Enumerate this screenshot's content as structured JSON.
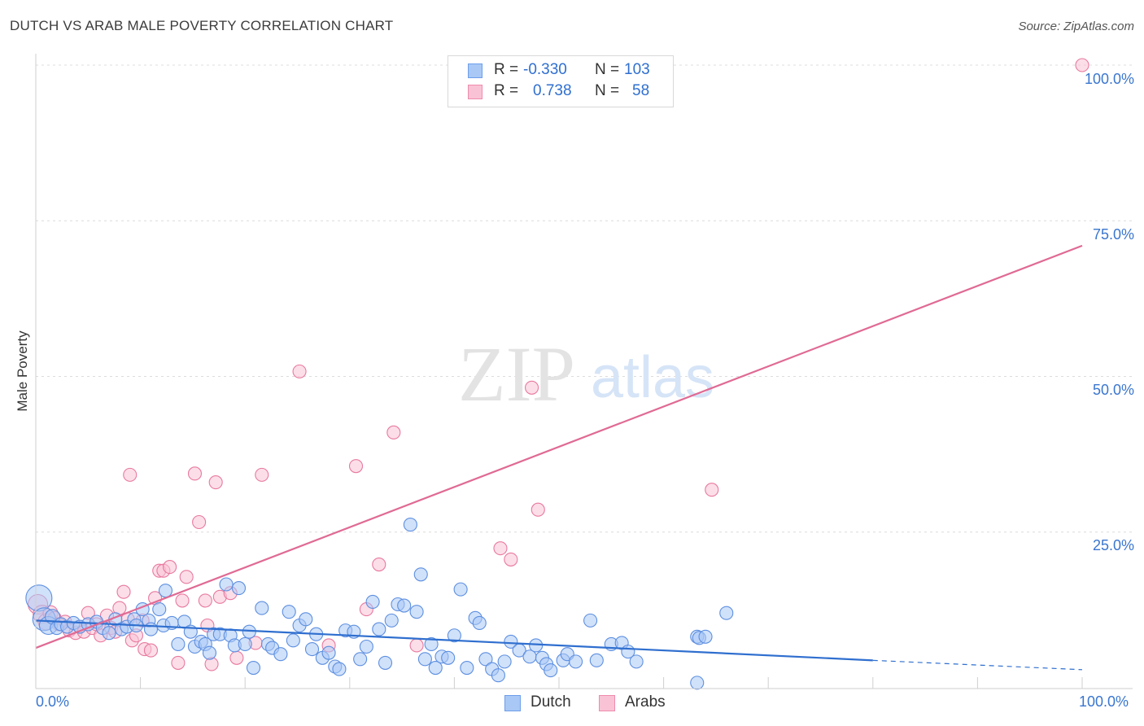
{
  "title": "DUTCH VS ARAB MALE POVERTY CORRELATION CHART",
  "source": "Source: ZipAtlas.com",
  "watermark": {
    "zip": "ZIP",
    "atlas": "atlas"
  },
  "legend": {
    "rows": [
      {
        "r_label": "R =",
        "r_value": "-0.330",
        "n_label": "N =",
        "n_value": "103",
        "color": "#a9c8f5",
        "border": "#6d9eea"
      },
      {
        "r_label": "R =",
        "r_value": "0.738",
        "n_label": "N =",
        "n_value": "58",
        "color": "#f9c3d5",
        "border": "#ee8bad"
      }
    ]
  },
  "colors": {
    "dutch_fill": "#a9c8f5",
    "dutch_stroke": "#5d8fe0",
    "dutch_line": "#2f6fcf",
    "arabs_fill": "#f9c3d5",
    "arabs_stroke": "#e8799f",
    "arabs_line": "#e06a94",
    "grid": "#dcdcdc",
    "axis_text": "#3a76cf"
  },
  "chart_data": {
    "type": "scatter",
    "title": "DUTCH VS ARAB MALE POVERTY CORRELATION CHART",
    "xlabel": "",
    "ylabel": "Male Poverty",
    "xlim": [
      0,
      100
    ],
    "ylim": [
      0,
      100
    ],
    "x_tick_labels": [
      "0.0%",
      "100.0%"
    ],
    "y_tick_labels": [
      "100.0%",
      "75.0%",
      "50.0%",
      "25.0%"
    ],
    "legend_position": "bottom-center",
    "series": [
      {
        "name": "Dutch",
        "r": -0.33,
        "n": 103,
        "trend": {
          "x0": 0,
          "y0": 10.8,
          "x1": 80,
          "y1": 4.4,
          "dash_to_x": 100,
          "dash_to_y": 2.9
        },
        "points": [
          {
            "x": 0.3,
            "y": 14.4,
            "s": 16
          },
          {
            "x": 0.8,
            "y": 11.0,
            "s": 14
          },
          {
            "x": 1.2,
            "y": 10.0,
            "s": 11
          },
          {
            "x": 1.6,
            "y": 11.4,
            "s": 9
          },
          {
            "x": 2.0,
            "y": 9.6,
            "s": 8
          },
          {
            "x": 2.4,
            "y": 10.2,
            "s": 8
          },
          {
            "x": 3.0,
            "y": 9.8,
            "s": 8
          },
          {
            "x": 3.6,
            "y": 10.4,
            "s": 8
          },
          {
            "x": 4.2,
            "y": 9.8,
            "s": 8
          },
          {
            "x": 5.0,
            "y": 10.2,
            "s": 8
          },
          {
            "x": 5.8,
            "y": 10.6,
            "s": 8
          },
          {
            "x": 6.4,
            "y": 9.6,
            "s": 8
          },
          {
            "x": 7.0,
            "y": 8.8,
            "s": 8
          },
          {
            "x": 7.6,
            "y": 11.0,
            "s": 8
          },
          {
            "x": 8.2,
            "y": 9.4,
            "s": 8
          },
          {
            "x": 8.7,
            "y": 9.8,
            "s": 8
          },
          {
            "x": 9.4,
            "y": 11.0,
            "s": 8
          },
          {
            "x": 9.6,
            "y": 10.0,
            "s": 8
          },
          {
            "x": 10.2,
            "y": 12.6,
            "s": 8
          },
          {
            "x": 10.8,
            "y": 10.8,
            "s": 8
          },
          {
            "x": 11.0,
            "y": 9.4,
            "s": 8
          },
          {
            "x": 11.8,
            "y": 12.6,
            "s": 8
          },
          {
            "x": 12.2,
            "y": 10.0,
            "s": 8
          },
          {
            "x": 12.4,
            "y": 15.6,
            "s": 8
          },
          {
            "x": 13.0,
            "y": 10.4,
            "s": 8
          },
          {
            "x": 13.6,
            "y": 7.0,
            "s": 8
          },
          {
            "x": 14.2,
            "y": 10.6,
            "s": 8
          },
          {
            "x": 14.8,
            "y": 9.0,
            "s": 8
          },
          {
            "x": 15.2,
            "y": 6.6,
            "s": 8
          },
          {
            "x": 15.8,
            "y": 7.4,
            "s": 8
          },
          {
            "x": 16.2,
            "y": 7.0,
            "s": 8
          },
          {
            "x": 16.6,
            "y": 5.6,
            "s": 8
          },
          {
            "x": 17.0,
            "y": 8.6,
            "s": 8
          },
          {
            "x": 17.6,
            "y": 8.6,
            "s": 8
          },
          {
            "x": 18.2,
            "y": 16.6,
            "s": 8
          },
          {
            "x": 18.6,
            "y": 8.4,
            "s": 8
          },
          {
            "x": 19.0,
            "y": 6.8,
            "s": 8
          },
          {
            "x": 19.4,
            "y": 16.0,
            "s": 8
          },
          {
            "x": 20.0,
            "y": 7.0,
            "s": 8
          },
          {
            "x": 20.4,
            "y": 9.0,
            "s": 8
          },
          {
            "x": 20.8,
            "y": 3.2,
            "s": 8
          },
          {
            "x": 21.6,
            "y": 12.8,
            "s": 8
          },
          {
            "x": 22.2,
            "y": 7.0,
            "s": 8
          },
          {
            "x": 22.6,
            "y": 6.4,
            "s": 8
          },
          {
            "x": 23.4,
            "y": 5.4,
            "s": 8
          },
          {
            "x": 24.2,
            "y": 12.2,
            "s": 8
          },
          {
            "x": 24.6,
            "y": 7.6,
            "s": 8
          },
          {
            "x": 25.2,
            "y": 10.0,
            "s": 8
          },
          {
            "x": 25.8,
            "y": 11.0,
            "s": 8
          },
          {
            "x": 26.4,
            "y": 6.2,
            "s": 8
          },
          {
            "x": 26.8,
            "y": 8.6,
            "s": 8
          },
          {
            "x": 27.4,
            "y": 4.8,
            "s": 8
          },
          {
            "x": 28.0,
            "y": 5.6,
            "s": 8
          },
          {
            "x": 28.6,
            "y": 3.4,
            "s": 8
          },
          {
            "x": 29.0,
            "y": 3.0,
            "s": 8
          },
          {
            "x": 29.6,
            "y": 9.2,
            "s": 8
          },
          {
            "x": 30.4,
            "y": 9.0,
            "s": 8
          },
          {
            "x": 31.0,
            "y": 4.6,
            "s": 8
          },
          {
            "x": 31.6,
            "y": 6.6,
            "s": 8
          },
          {
            "x": 32.2,
            "y": 13.8,
            "s": 8
          },
          {
            "x": 32.8,
            "y": 9.4,
            "s": 8
          },
          {
            "x": 33.4,
            "y": 4.0,
            "s": 8
          },
          {
            "x": 34.0,
            "y": 10.8,
            "s": 8
          },
          {
            "x": 34.6,
            "y": 13.4,
            "s": 8
          },
          {
            "x": 35.2,
            "y": 13.2,
            "s": 8
          },
          {
            "x": 35.8,
            "y": 26.2,
            "s": 8
          },
          {
            "x": 36.4,
            "y": 12.2,
            "s": 8
          },
          {
            "x": 36.8,
            "y": 18.2,
            "s": 8
          },
          {
            "x": 37.2,
            "y": 4.6,
            "s": 8
          },
          {
            "x": 37.8,
            "y": 7.0,
            "s": 8
          },
          {
            "x": 38.2,
            "y": 3.2,
            "s": 8
          },
          {
            "x": 38.8,
            "y": 5.0,
            "s": 8
          },
          {
            "x": 39.4,
            "y": 4.8,
            "s": 8
          },
          {
            "x": 40.0,
            "y": 8.4,
            "s": 8
          },
          {
            "x": 40.6,
            "y": 15.8,
            "s": 8
          },
          {
            "x": 41.2,
            "y": 3.2,
            "s": 8
          },
          {
            "x": 42.0,
            "y": 11.2,
            "s": 8
          },
          {
            "x": 42.4,
            "y": 10.4,
            "s": 8
          },
          {
            "x": 43.0,
            "y": 4.6,
            "s": 8
          },
          {
            "x": 43.6,
            "y": 3.0,
            "s": 8
          },
          {
            "x": 44.2,
            "y": 2.0,
            "s": 8
          },
          {
            "x": 44.8,
            "y": 4.2,
            "s": 8
          },
          {
            "x": 45.4,
            "y": 7.4,
            "s": 8
          },
          {
            "x": 46.2,
            "y": 6.0,
            "s": 8
          },
          {
            "x": 47.2,
            "y": 5.0,
            "s": 8
          },
          {
            "x": 47.8,
            "y": 6.8,
            "s": 8
          },
          {
            "x": 48.4,
            "y": 4.8,
            "s": 8
          },
          {
            "x": 48.8,
            "y": 3.8,
            "s": 8
          },
          {
            "x": 49.2,
            "y": 2.8,
            "s": 8
          },
          {
            "x": 50.4,
            "y": 4.4,
            "s": 8
          },
          {
            "x": 50.8,
            "y": 5.4,
            "s": 8
          },
          {
            "x": 51.6,
            "y": 4.2,
            "s": 8
          },
          {
            "x": 53.0,
            "y": 10.8,
            "s": 8
          },
          {
            "x": 53.6,
            "y": 4.4,
            "s": 8
          },
          {
            "x": 55.0,
            "y": 7.0,
            "s": 8
          },
          {
            "x": 56.0,
            "y": 7.2,
            "s": 8
          },
          {
            "x": 56.6,
            "y": 5.8,
            "s": 8
          },
          {
            "x": 57.4,
            "y": 4.2,
            "s": 8
          },
          {
            "x": 63.2,
            "y": 8.2,
            "s": 8
          },
          {
            "x": 63.4,
            "y": 8.0,
            "s": 8
          },
          {
            "x": 63.2,
            "y": 0.8,
            "s": 8
          },
          {
            "x": 66.0,
            "y": 12.0,
            "s": 8
          },
          {
            "x": 64.0,
            "y": 8.2,
            "s": 8
          }
        ]
      },
      {
        "name": "Arabs",
        "r": 0.738,
        "n": 58,
        "trend": {
          "x0": 0,
          "y0": 6.4,
          "x1": 100,
          "y1": 71.0
        },
        "points": [
          {
            "x": 0.2,
            "y": 13.4,
            "s": 12
          },
          {
            "x": 0.6,
            "y": 11.8,
            "s": 11
          },
          {
            "x": 1.0,
            "y": 10.6,
            "s": 10
          },
          {
            "x": 1.4,
            "y": 12.0,
            "s": 9
          },
          {
            "x": 1.8,
            "y": 11.2,
            "s": 8
          },
          {
            "x": 2.2,
            "y": 10.2,
            "s": 8
          },
          {
            "x": 2.8,
            "y": 10.6,
            "s": 8
          },
          {
            "x": 3.2,
            "y": 9.2,
            "s": 8
          },
          {
            "x": 3.8,
            "y": 8.8,
            "s": 8
          },
          {
            "x": 4.2,
            "y": 9.8,
            "s": 8
          },
          {
            "x": 4.6,
            "y": 9.0,
            "s": 8
          },
          {
            "x": 5.0,
            "y": 12.0,
            "s": 8
          },
          {
            "x": 5.4,
            "y": 9.6,
            "s": 8
          },
          {
            "x": 5.8,
            "y": 10.2,
            "s": 8
          },
          {
            "x": 6.2,
            "y": 8.4,
            "s": 8
          },
          {
            "x": 6.8,
            "y": 11.6,
            "s": 8
          },
          {
            "x": 7.2,
            "y": 9.6,
            "s": 8
          },
          {
            "x": 7.6,
            "y": 9.0,
            "s": 8
          },
          {
            "x": 8.0,
            "y": 12.8,
            "s": 8
          },
          {
            "x": 8.4,
            "y": 15.4,
            "s": 8
          },
          {
            "x": 8.8,
            "y": 11.0,
            "s": 8
          },
          {
            "x": 9.2,
            "y": 7.6,
            "s": 8
          },
          {
            "x": 9.6,
            "y": 8.4,
            "s": 8
          },
          {
            "x": 10.4,
            "y": 6.2,
            "s": 8
          },
          {
            "x": 11.0,
            "y": 6.0,
            "s": 8
          },
          {
            "x": 11.4,
            "y": 14.4,
            "s": 8
          },
          {
            "x": 11.8,
            "y": 18.8,
            "s": 8
          },
          {
            "x": 12.2,
            "y": 18.8,
            "s": 8
          },
          {
            "x": 12.8,
            "y": 19.4,
            "s": 8
          },
          {
            "x": 13.6,
            "y": 4.0,
            "s": 8
          },
          {
            "x": 14.0,
            "y": 14.0,
            "s": 8
          },
          {
            "x": 14.4,
            "y": 17.8,
            "s": 8
          },
          {
            "x": 15.2,
            "y": 34.4,
            "s": 8
          },
          {
            "x": 15.6,
            "y": 26.6,
            "s": 8
          },
          {
            "x": 16.2,
            "y": 14.0,
            "s": 8
          },
          {
            "x": 16.4,
            "y": 10.0,
            "s": 8
          },
          {
            "x": 16.8,
            "y": 3.8,
            "s": 8
          },
          {
            "x": 17.2,
            "y": 33.0,
            "s": 8
          },
          {
            "x": 17.6,
            "y": 14.6,
            "s": 8
          },
          {
            "x": 18.6,
            "y": 15.2,
            "s": 8
          },
          {
            "x": 19.2,
            "y": 4.8,
            "s": 8
          },
          {
            "x": 21.0,
            "y": 7.2,
            "s": 8
          },
          {
            "x": 21.6,
            "y": 34.2,
            "s": 8
          },
          {
            "x": 25.2,
            "y": 50.8,
            "s": 8
          },
          {
            "x": 28.0,
            "y": 6.8,
            "s": 8
          },
          {
            "x": 30.6,
            "y": 35.6,
            "s": 8
          },
          {
            "x": 31.6,
            "y": 12.6,
            "s": 8
          },
          {
            "x": 32.8,
            "y": 19.8,
            "s": 8
          },
          {
            "x": 34.2,
            "y": 41.0,
            "s": 8
          },
          {
            "x": 36.4,
            "y": 6.8,
            "s": 8
          },
          {
            "x": 44.4,
            "y": 22.4,
            "s": 8
          },
          {
            "x": 45.4,
            "y": 20.6,
            "s": 8
          },
          {
            "x": 47.4,
            "y": 48.2,
            "s": 8
          },
          {
            "x": 48.0,
            "y": 28.6,
            "s": 8
          },
          {
            "x": 64.6,
            "y": 31.8,
            "s": 8
          },
          {
            "x": 100.0,
            "y": 100.0,
            "s": 8
          },
          {
            "x": 9.0,
            "y": 34.2,
            "s": 8
          },
          {
            "x": 10.2,
            "y": 10.8,
            "s": 8
          }
        ]
      }
    ]
  }
}
